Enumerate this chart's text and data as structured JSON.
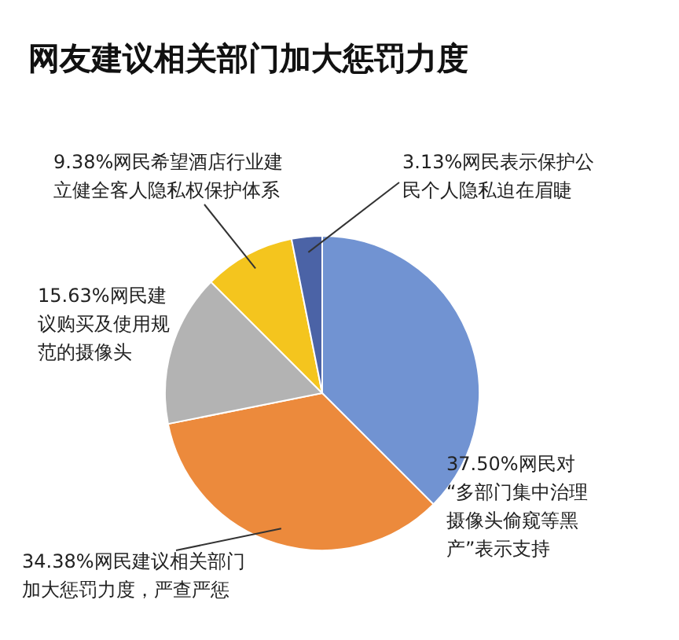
{
  "chart_data": {
    "type": "pie",
    "title": "网友建议相关部门加大惩罚力度",
    "categories": [
      "网民对“多部门集中治理摄像头偷窥等黑产”表示支持",
      "网民建议相关部门加大惩罚力度，严查严惩",
      "网民建议购买及使用规范的摄像头",
      "网民希望酒店行业建立健全客人隐私权保护体系",
      "网民表示保护公民个人隐私迫在眉睫"
    ],
    "values": [
      37.5,
      34.38,
      15.63,
      9.38,
      3.13
    ],
    "value_labels": [
      "37.50%",
      "34.38%",
      "15.63%",
      "9.38%",
      "3.13%"
    ],
    "colors": [
      "#7193d2",
      "#ec8a3c",
      "#b3b3b3",
      "#f4c51e",
      "#4b63a6"
    ]
  }
}
